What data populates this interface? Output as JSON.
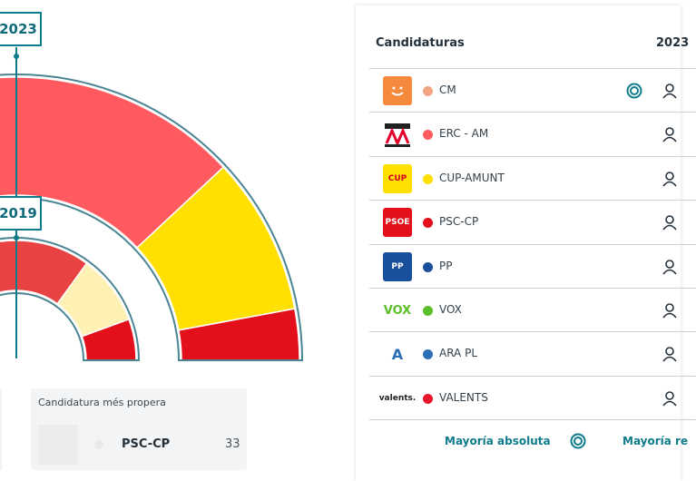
{
  "left": {
    "labels": [
      "2023",
      "2019"
    ],
    "closest": {
      "title": "Candidatura més propera",
      "name": "PSC-CP",
      "value": 33
    }
  },
  "panel": {
    "header": {
      "title": "Candidaturas",
      "year": "2023"
    },
    "rows": [
      {
        "name": "CM",
        "color": "#f2a584",
        "logo_bg": "#f58a3c",
        "logo": ""
      },
      {
        "name": "ERC - AM",
        "color": "#ff5a5f",
        "logo_bg": "#ffffff",
        "logo": ""
      },
      {
        "name": "CUP-AMUNT",
        "color": "#ffe000",
        "logo_bg": "#ffe000",
        "logo": "CUP"
      },
      {
        "name": "PSC-CP",
        "color": "#e3101b",
        "logo_bg": "#e3101b",
        "logo": "PSOE"
      },
      {
        "name": "PP",
        "color": "#1a4f9c",
        "logo_bg": "#1a4f9c",
        "logo": "PP"
      },
      {
        "name": "VOX",
        "color": "#5cbf2a",
        "logo_bg": "#ffffff",
        "logo": "VOX"
      },
      {
        "name": "ARA PL",
        "color": "#2d6fb5",
        "logo_bg": "#ffffff",
        "logo": "A"
      },
      {
        "name": "VALENTS",
        "color": "#e8152a",
        "logo_bg": "#ffffff",
        "logo": "valents."
      }
    ],
    "footer": {
      "majority": "Mayoría absoluta",
      "majority2": "Mayoría re"
    }
  }
}
